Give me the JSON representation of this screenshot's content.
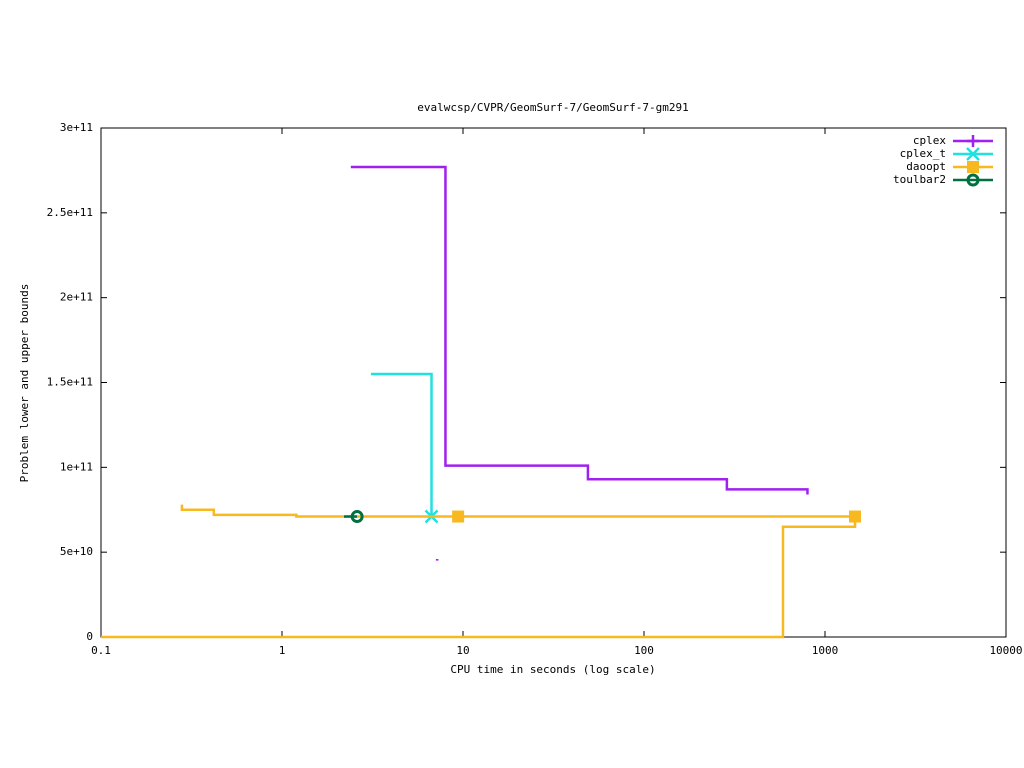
{
  "chart_data": {
    "type": "line",
    "title": "evalwcsp/CVPR/GeomSurf-7/GeomSurf-7-gm291",
    "x_label": "CPU time in seconds (log scale)",
    "y_label": "Problem lower and upper bounds",
    "x_log": true,
    "xlim": [
      0.1,
      10000
    ],
    "xticks": [
      0.1,
      1,
      10,
      100,
      1000,
      10000
    ],
    "ylim": [
      0,
      300000000000
    ],
    "yticks": [
      0,
      {
        "value": 50000000000,
        "label": "5e+10"
      },
      {
        "value": 100000000000,
        "label": "1e+11"
      },
      {
        "value": 150000000000,
        "label": "1.5e+11"
      },
      {
        "value": 200000000000,
        "label": "2e+11"
      },
      {
        "value": 250000000000,
        "label": "2.5e+11"
      },
      {
        "value": 300000000000,
        "label": "3e+11"
      }
    ],
    "legend": "top-right",
    "series": [
      {
        "name": "cplex",
        "color": "#a020f0",
        "marker": "plus",
        "markers": [],
        "x": [
          2.4,
          8,
          8,
          49,
          49,
          287,
          287,
          800,
          800,
          null,
          7.2,
          7.2
        ],
        "values": [
          277000000000,
          277000000000,
          101000000000,
          101000000000,
          93000000000,
          93000000000,
          87000000000,
          87000000000,
          84000000000,
          null,
          46000000000,
          45000000000
        ]
      },
      {
        "name": "cplex_t",
        "color": "#20e0e0",
        "marker": "cross",
        "markers": [
          2
        ],
        "x": [
          3.1,
          6.7,
          6.7
        ],
        "values": [
          155000000000,
          155000000000,
          71000000000
        ]
      },
      {
        "name": "daoopt",
        "color": "#f8b820",
        "marker": "square",
        "markers": [
          6,
          7
        ],
        "x": [
          0.28,
          0.28,
          0.42,
          0.42,
          1.2,
          1.2,
          9.4,
          1465,
          null,
          0.1,
          586,
          586,
          1465,
          1465
        ],
        "values": [
          78000000000,
          75000000000,
          75000000000,
          72000000000,
          72000000000,
          71000000000,
          71000000000,
          71000000000,
          null,
          0,
          0,
          65000000000,
          65000000000,
          71000000000
        ]
      },
      {
        "name": "toulbar2",
        "color": "#007040",
        "marker": "circle",
        "markers": [
          1
        ],
        "x": [
          2.2,
          2.6
        ],
        "values": [
          71000000000,
          71000000000
        ]
      }
    ]
  }
}
